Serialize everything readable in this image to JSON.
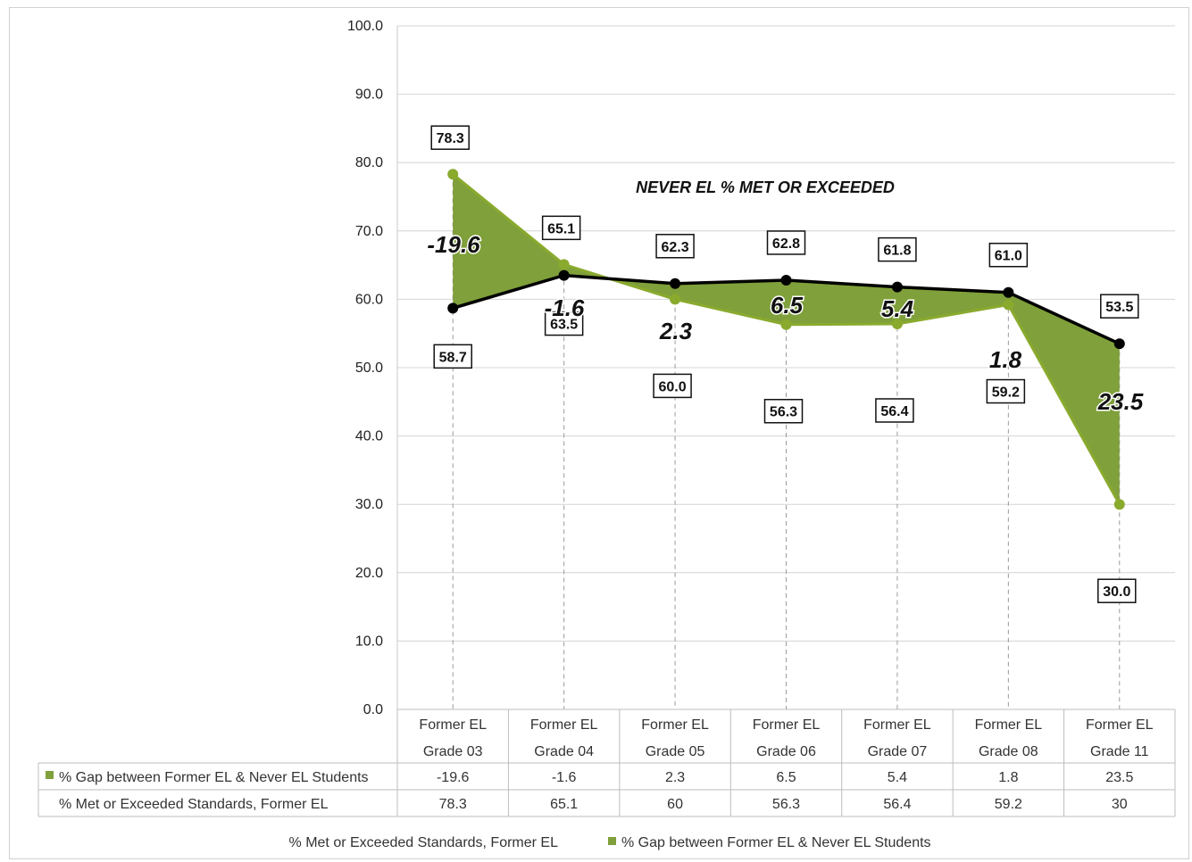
{
  "chart_data": {
    "type": "line",
    "title": "",
    "xlabel": "",
    "ylabel": "",
    "ylim": [
      0,
      100
    ],
    "y_ticks": [
      "0.0",
      "10.0",
      "20.0",
      "30.0",
      "40.0",
      "50.0",
      "60.0",
      "70.0",
      "80.0",
      "90.0",
      "100.0"
    ],
    "grid": true,
    "categories": [
      [
        "Former EL",
        "Grade 03"
      ],
      [
        "Former EL",
        "Grade 04"
      ],
      [
        "Former EL",
        "Grade 05"
      ],
      [
        "Former EL",
        "Grade 06"
      ],
      [
        "Former EL",
        "Grade 07"
      ],
      [
        "Former EL",
        "Grade 08"
      ],
      [
        "Former EL",
        "Grade 11"
      ]
    ],
    "annotation": "NEVER EL % MET OR EXCEEDED",
    "never_el": {
      "values": [
        58.7,
        63.5,
        62.3,
        62.8,
        61.8,
        61.0,
        53.5
      ],
      "labels": [
        "58.7",
        "63.5",
        "62.3",
        "62.8",
        "61.8",
        "61.0",
        "53.5"
      ],
      "color": "#000000"
    },
    "series": [
      {
        "name": "% Gap between Former EL & Never EL Students",
        "values": [
          -19.6,
          -1.6,
          2.3,
          6.5,
          5.4,
          1.8,
          23.5
        ],
        "table_values": [
          "-19.6",
          "-1.6",
          "2.3",
          "6.5",
          "5.4",
          "1.8",
          "23.5"
        ],
        "color": "#7fa03a"
      },
      {
        "name": "% Met or Exceeded Standards, Former EL",
        "values": [
          78.3,
          65.1,
          60.0,
          56.3,
          56.4,
          59.2,
          30.0
        ],
        "labels": [
          "78.3",
          "65.1",
          "60.0",
          "56.3",
          "56.4",
          "59.2",
          "30.0"
        ],
        "table_values": [
          "78.3",
          "65.1",
          "60",
          "56.3",
          "56.4",
          "59.2",
          "30"
        ],
        "color": "#8aaa2e"
      }
    ],
    "legend": [
      "% Met or Exceeded Standards, Former EL",
      "% Gap between Former EL & Never EL Students"
    ],
    "legend_position": "bottom"
  }
}
